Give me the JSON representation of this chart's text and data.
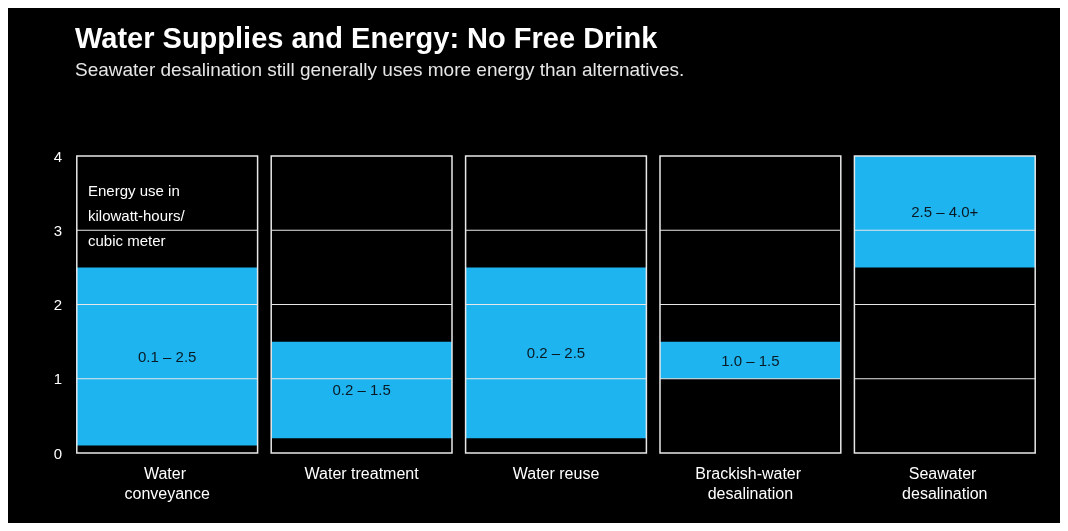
{
  "chart_data": {
    "type": "bar",
    "title": "Water Supplies and Energy: No Free Drink",
    "subtitle": "Seawater desalination still generally uses more energy than alternatives.",
    "categories": [
      "Water conveyance",
      "Water treatment",
      "Water reuse",
      "Brackish-water desalination",
      "Seawater desalination"
    ],
    "base": [
      0.1,
      0.2,
      0.2,
      1.0,
      2.5
    ],
    "values": [
      2.4,
      1.3,
      2.3,
      0.5,
      1.5
    ],
    "color": "#1eb4f0",
    "ylim": [
      0,
      4
    ],
    "yticks": [
      0,
      1,
      2,
      3,
      4
    ],
    "grid": "y",
    "annotations": [
      "Energy use in kilowatt-hours/ cubic meter",
      "0.1 – 2.5",
      "0.2 – 1.5",
      "0.2 – 2.5",
      "1.0 – 1.5",
      "2.5 – 4.0+"
    ]
  }
}
